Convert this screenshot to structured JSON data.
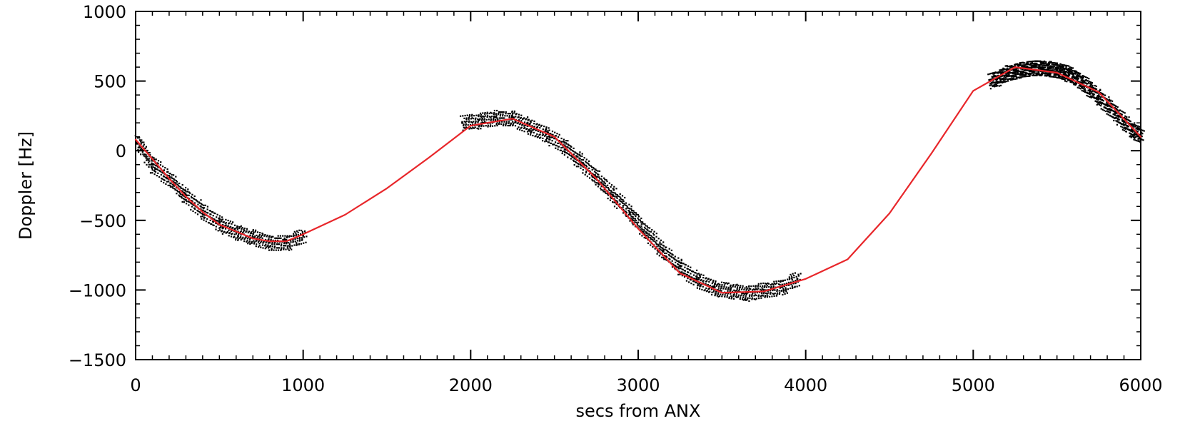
{
  "chart_data": {
    "type": "scatter",
    "title": "",
    "xlabel": "secs from ANX",
    "ylabel": "Doppler [Hz]",
    "xlim": [
      0,
      6000
    ],
    "ylim": [
      -1500,
      1000
    ],
    "x_ticks": [
      0,
      1000,
      2000,
      3000,
      4000,
      5000,
      6000
    ],
    "y_ticks": [
      -1500,
      -1000,
      -500,
      0,
      500,
      1000
    ],
    "x_tick_labels": [
      "0",
      "1000",
      "2000",
      "3000",
      "4000",
      "5000",
      "6000"
    ],
    "y_tick_labels": [
      "−1500",
      "−1000",
      "−500",
      "0",
      "500",
      "1000"
    ],
    "grid": false,
    "legend": "none",
    "colors": {
      "measurements": "#000000",
      "model": "#e8262a"
    },
    "series": [
      {
        "type": "line",
        "x": [
          0,
          100,
          200,
          300,
          400,
          500,
          600,
          700,
          800,
          900,
          1000,
          1250,
          1500,
          1750,
          2000,
          2250,
          2500,
          2750,
          3000,
          3250,
          3500,
          3750,
          4000,
          4250,
          4500,
          4750,
          5000,
          5250,
          5500,
          5750,
          6000
        ],
        "y": [
          80,
          -60,
          -200,
          -330,
          -440,
          -530,
          -580,
          -630,
          -650,
          -650,
          -600,
          -460,
          -270,
          -50,
          180,
          230,
          100,
          -200,
          -560,
          -880,
          -1020,
          -1010,
          -920,
          -780,
          -450,
          -20,
          430,
          600,
          560,
          420,
          100
        ]
      },
      {
        "type": "scatter",
        "segments": [
          {
            "x": [
              10,
              100,
              200,
              300,
              400,
              500,
              600,
              700,
              800,
              900,
              1000
            ],
            "y": [
              60,
              -100,
              -200,
              -320,
              -430,
              -520,
              -580,
              -620,
              -660,
              -660,
              -610
            ]
          },
          {
            "x": [
              1950,
              2050,
              2150,
              2250,
              2350,
              2450,
              2550,
              2650,
              2750,
              2850,
              2950,
              3050,
              3150,
              3250,
              3350,
              3450,
              3550,
              3650,
              3750,
              3850,
              3950
            ],
            "y": [
              200,
              220,
              240,
              240,
              180,
              120,
              40,
              -70,
              -190,
              -320,
              -450,
              -590,
              -720,
              -830,
              -920,
              -980,
              -1000,
              -1020,
              -1000,
              -980,
              -920
            ]
          },
          {
            "x": [
              5100,
              5150,
              5200,
              5250,
              5300,
              5350,
              5400,
              5450,
              5500,
              5550,
              5600,
              5650,
              5700,
              5750,
              5800,
              5850,
              5900,
              5950,
              6000
            ],
            "y": [
              500,
              530,
              560,
              580,
              590,
              600,
              600,
              590,
              580,
              560,
              530,
              490,
              440,
              390,
              330,
              270,
              210,
              150,
              110
            ]
          }
        ]
      }
    ]
  }
}
